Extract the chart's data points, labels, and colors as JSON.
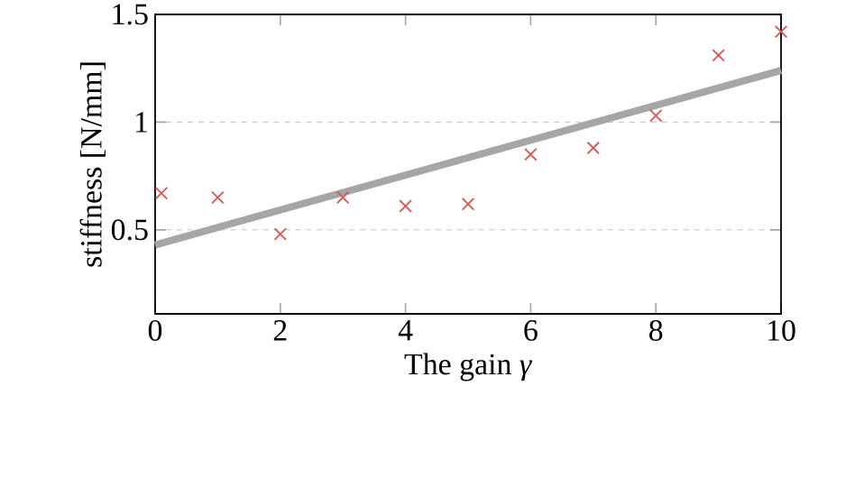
{
  "chart_data": {
    "type": "scatter",
    "xlabel": "The gain *γ*",
    "ylabel": "stiffness [N/mm]",
    "xlim": [
      0,
      10
    ],
    "ylim": [
      0.11,
      1.5
    ],
    "xticks": [
      0,
      2,
      4,
      6,
      8,
      10
    ],
    "yticks": [
      0.5,
      1,
      1.5
    ],
    "grid": "y",
    "series": [
      {
        "type": "line",
        "color": "#a6a6a6",
        "marker": "none",
        "x": [
          0,
          10
        ],
        "values": [
          0.43,
          1.24
        ]
      },
      {
        "color": "#d9534f",
        "marker": "cross",
        "x": [
          0.1,
          1,
          2,
          3,
          4,
          5,
          6,
          7,
          8,
          9,
          10
        ],
        "values": [
          0.67,
          0.65,
          0.48,
          0.65,
          0.61,
          0.62,
          0.85,
          0.88,
          1.03,
          1.31,
          1.42
        ]
      }
    ]
  }
}
